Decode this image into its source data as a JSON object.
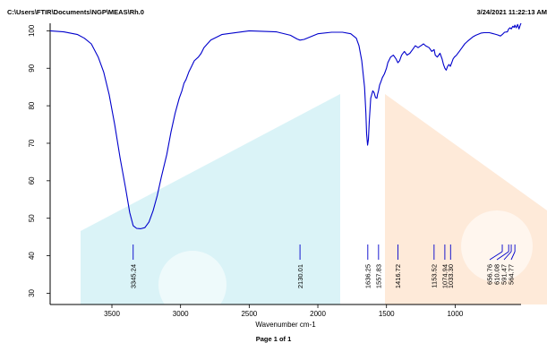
{
  "header": {
    "file_path": "C:\\Users\\FTIR\\Documents\\NGP\\MEAS\\Rh.0",
    "datetime": "3/24/2021  11:22:13 AM"
  },
  "footer": {
    "page": "Page 1 of 1"
  },
  "colors": {
    "spectrum": "#0000cc",
    "peak_marker": "#0000cc",
    "watermark_cyan": "#cdeff4",
    "watermark_orange": "#fde3cc"
  },
  "chart_data": {
    "type": "line",
    "title": "",
    "xlabel": "Wavenumber cm-1",
    "ylabel": "",
    "xlim": [
      3950,
      520
    ],
    "ylim": [
      27,
      102
    ],
    "x_reversed": true,
    "grid": false,
    "x_ticks": [
      {
        "value": 3500,
        "label": "3500"
      },
      {
        "value": 3000,
        "label": "3000"
      },
      {
        "value": 2500,
        "label": "2500"
      },
      {
        "value": 2000,
        "label": "2000"
      },
      {
        "value": 1500,
        "label": "1500"
      },
      {
        "value": 1000,
        "label": "1000"
      }
    ],
    "y_ticks": [
      {
        "value": 30,
        "label": "30"
      },
      {
        "value": 40,
        "label": "40"
      },
      {
        "value": 50,
        "label": "50"
      },
      {
        "value": 60,
        "label": "60"
      },
      {
        "value": 70,
        "label": "70"
      },
      {
        "value": 80,
        "label": "80"
      },
      {
        "value": 90,
        "label": "90"
      },
      {
        "value": 100,
        "label": "100"
      }
    ],
    "series": [
      {
        "x": [
          3950,
          3850,
          3750,
          3700,
          3650,
          3600,
          3560,
          3520,
          3480,
          3440,
          3400,
          3370,
          3345,
          3320,
          3290,
          3260,
          3230,
          3200,
          3170,
          3140,
          3100,
          3070,
          3040,
          3010,
          2990,
          2975,
          2960,
          2940,
          2920,
          2900,
          2870,
          2850,
          2830,
          2780,
          2700,
          2500,
          2300,
          2200,
          2150,
          2130,
          2100,
          2060,
          2000,
          1900,
          1820,
          1760,
          1720,
          1700,
          1680,
          1660,
          1650,
          1645,
          1638,
          1632,
          1625,
          1615,
          1600,
          1590,
          1580,
          1570,
          1565,
          1558,
          1550,
          1540,
          1530,
          1515,
          1500,
          1490,
          1470,
          1450,
          1430,
          1417,
          1405,
          1390,
          1370,
          1350,
          1330,
          1310,
          1290,
          1270,
          1250,
          1230,
          1215,
          1190,
          1170,
          1153,
          1145,
          1130,
          1110,
          1095,
          1085,
          1075,
          1065,
          1055,
          1045,
          1035,
          1025,
          1015,
          1005,
          990,
          970,
          950,
          930,
          910,
          890,
          870,
          850,
          830,
          810,
          790,
          770,
          750,
          730,
          710,
          690,
          670,
          657,
          640,
          620,
          610,
          600,
          591,
          580,
          570,
          565,
          555,
          545,
          535,
          525,
          520
        ],
        "y": [
          100,
          99.7,
          99,
          98,
          96.5,
          93,
          89,
          83,
          75,
          66,
          58,
          51.5,
          48,
          47.3,
          47.2,
          47.5,
          49,
          52,
          56,
          61,
          67,
          73,
          78,
          82,
          84,
          86,
          87,
          89,
          90.5,
          92,
          93,
          94,
          95.5,
          97.5,
          99,
          100,
          99.7,
          98.8,
          97.8,
          97.5,
          97.7,
          98.3,
          99.2,
          99.6,
          99.6,
          99.2,
          98,
          96,
          92,
          85,
          78,
          72.5,
          69.5,
          71,
          76,
          82,
          84,
          83.5,
          82.2,
          82,
          83,
          84,
          85.5,
          86.5,
          87.5,
          88.5,
          90,
          91.5,
          93,
          93.5,
          92.5,
          91.5,
          92,
          93.5,
          94.5,
          93.5,
          94,
          95,
          96,
          95.5,
          96,
          96.5,
          96,
          95.5,
          94.5,
          95,
          93.5,
          93,
          94,
          92.5,
          91,
          90,
          89.5,
          90.5,
          91,
          90.5,
          91.5,
          92.5,
          93,
          93.5,
          94.5,
          95.5,
          96.5,
          97.2,
          97.8,
          98.4,
          98.8,
          99.1,
          99.4,
          99.5,
          99.5,
          99.5,
          99.3,
          99.1,
          98.9,
          98.6,
          99,
          99.6,
          99.7,
          100.5,
          100.8,
          100.5,
          101.2,
          100.9,
          101.5,
          100.8,
          101.7,
          100.5,
          101.6,
          102
        ]
      }
    ],
    "peaks": [
      {
        "x": 3345.24,
        "label": "3345.24"
      },
      {
        "x": 2130.01,
        "label": "2130.01"
      },
      {
        "x": 1636.25,
        "label": "1636.25"
      },
      {
        "x": 1557.83,
        "label": "1557.83"
      },
      {
        "x": 1416.72,
        "label": "1416.72"
      },
      {
        "x": 1153.52,
        "label": "1153.52"
      },
      {
        "x": 1074.94,
        "label": "1074.94"
      },
      {
        "x": 1033.3,
        "label": "1033.30"
      },
      {
        "x": 656.76,
        "label": "656.76"
      },
      {
        "x": 610.08,
        "label": "610.08"
      },
      {
        "x": 591.47,
        "label": "591.47"
      },
      {
        "x": 564.77,
        "label": "564.77"
      }
    ]
  }
}
